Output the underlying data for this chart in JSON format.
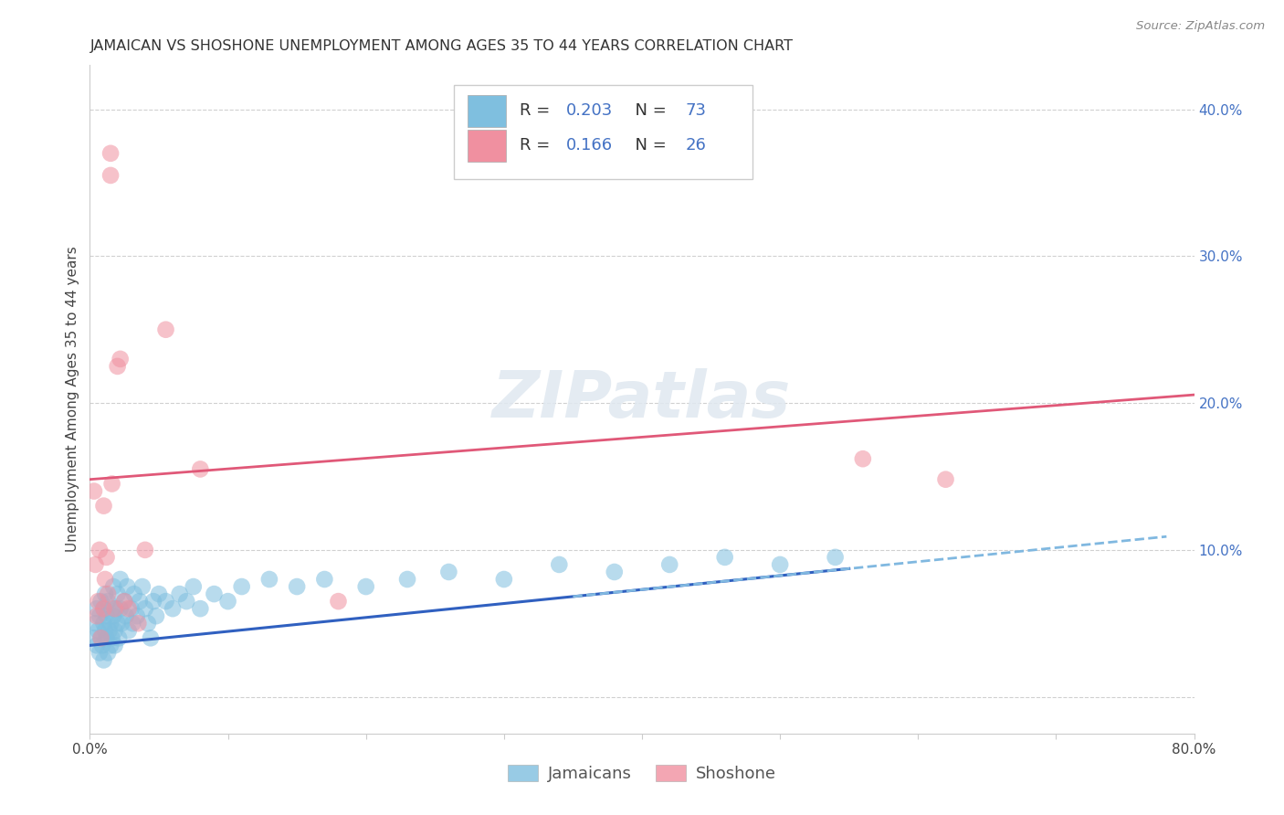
{
  "title": "JAMAICAN VS SHOSHONE UNEMPLOYMENT AMONG AGES 35 TO 44 YEARS CORRELATION CHART",
  "source": "Source: ZipAtlas.com",
  "ylabel": "Unemployment Among Ages 35 to 44 years",
  "xlim": [
    0.0,
    0.8
  ],
  "ylim": [
    -0.025,
    0.43
  ],
  "jamaican_R": 0.203,
  "jamaican_N": 73,
  "shoshone_R": 0.166,
  "shoshone_N": 26,
  "jamaican_color": "#7fbfdf",
  "shoshone_color": "#f090a0",
  "jamaican_line_color": "#3060c0",
  "shoshone_line_color": "#e05878",
  "dashed_line_color": "#80b8e0",
  "title_fontsize": 11.5,
  "axis_label_fontsize": 11,
  "tick_fontsize": 11,
  "legend_fontsize": 13,
  "right_tick_color": "#4472c4",
  "jamaican_x": [
    0.003,
    0.004,
    0.005,
    0.005,
    0.006,
    0.007,
    0.007,
    0.008,
    0.008,
    0.009,
    0.01,
    0.01,
    0.01,
    0.011,
    0.011,
    0.012,
    0.012,
    0.013,
    0.013,
    0.014,
    0.015,
    0.015,
    0.016,
    0.016,
    0.017,
    0.017,
    0.018,
    0.018,
    0.019,
    0.02,
    0.02,
    0.021,
    0.022,
    0.022,
    0.023,
    0.025,
    0.026,
    0.027,
    0.028,
    0.03,
    0.031,
    0.032,
    0.034,
    0.036,
    0.038,
    0.04,
    0.042,
    0.044,
    0.046,
    0.048,
    0.05,
    0.055,
    0.06,
    0.065,
    0.07,
    0.075,
    0.08,
    0.09,
    0.1,
    0.11,
    0.13,
    0.15,
    0.17,
    0.2,
    0.23,
    0.26,
    0.3,
    0.34,
    0.38,
    0.42,
    0.46,
    0.5,
    0.54
  ],
  "jamaican_y": [
    0.04,
    0.05,
    0.035,
    0.06,
    0.045,
    0.055,
    0.03,
    0.04,
    0.065,
    0.035,
    0.05,
    0.06,
    0.025,
    0.045,
    0.07,
    0.04,
    0.055,
    0.03,
    0.065,
    0.045,
    0.05,
    0.035,
    0.06,
    0.04,
    0.055,
    0.075,
    0.045,
    0.035,
    0.06,
    0.05,
    0.07,
    0.04,
    0.06,
    0.08,
    0.05,
    0.065,
    0.055,
    0.075,
    0.045,
    0.06,
    0.05,
    0.07,
    0.055,
    0.065,
    0.075,
    0.06,
    0.05,
    0.04,
    0.065,
    0.055,
    0.07,
    0.065,
    0.06,
    0.07,
    0.065,
    0.075,
    0.06,
    0.07,
    0.065,
    0.075,
    0.08,
    0.075,
    0.08,
    0.075,
    0.08,
    0.085,
    0.08,
    0.09,
    0.085,
    0.09,
    0.095,
    0.09,
    0.095
  ],
  "shoshone_x": [
    0.003,
    0.004,
    0.005,
    0.006,
    0.007,
    0.008,
    0.01,
    0.01,
    0.011,
    0.012,
    0.013,
    0.015,
    0.015,
    0.016,
    0.018,
    0.02,
    0.022,
    0.025,
    0.028,
    0.035,
    0.04,
    0.055,
    0.08,
    0.18,
    0.56,
    0.62
  ],
  "shoshone_y": [
    0.14,
    0.09,
    0.055,
    0.065,
    0.1,
    0.04,
    0.13,
    0.06,
    0.08,
    0.095,
    0.07,
    0.37,
    0.355,
    0.145,
    0.06,
    0.225,
    0.23,
    0.065,
    0.06,
    0.05,
    0.1,
    0.25,
    0.155,
    0.065,
    0.162,
    0.148
  ],
  "background_color": "#ffffff",
  "grid_color": "#d0d0d0",
  "shoshone_intercept": 0.148,
  "shoshone_slope": 0.072,
  "jamaican_intercept": 0.035,
  "jamaican_slope": 0.095
}
